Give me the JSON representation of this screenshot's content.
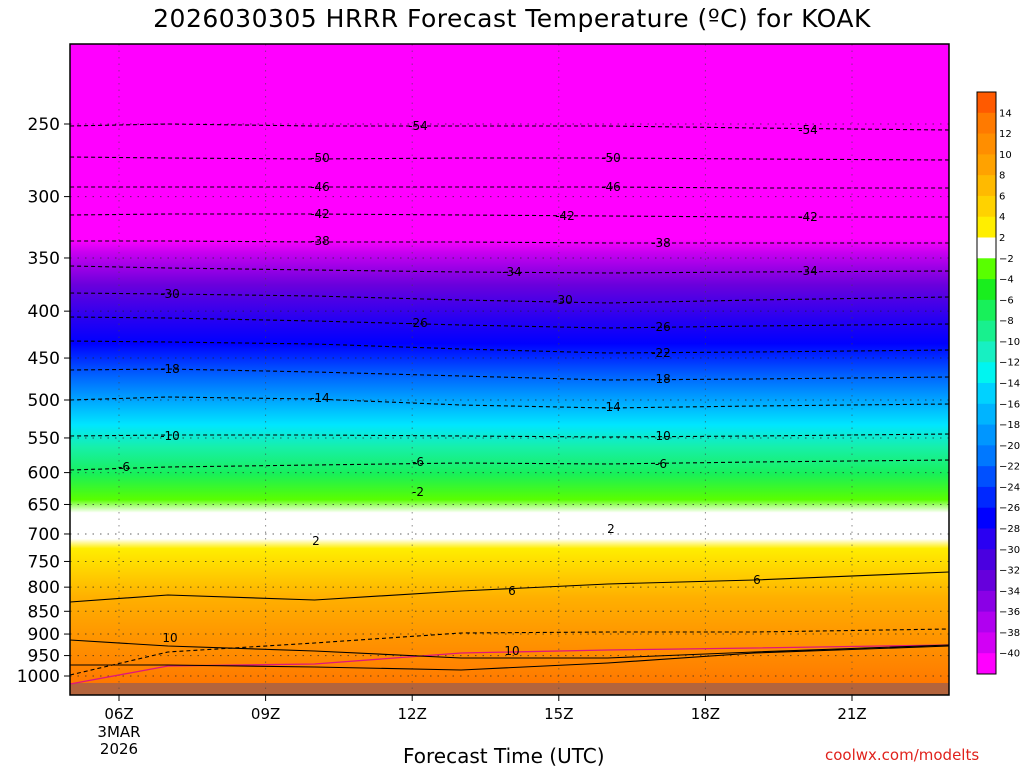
{
  "title": "2026030305 HRRR Forecast Temperature (ºC) for KOAK",
  "xlabel": "Forecast Time (UTC)",
  "credit": "coolwx.com/modelts",
  "chart_data": {
    "type": "heatmap",
    "title": "2026030305 HRRR Forecast Temperature (ºC) for KOAK",
    "xlabel": "Forecast Time (UTC)",
    "ylabel": "",
    "x_ticks": [
      "06Z",
      "09Z",
      "12Z",
      "15Z",
      "18Z",
      "21Z"
    ],
    "x_tick_extra": [
      "3MAR",
      "2026"
    ],
    "y_ticks": [
      250,
      300,
      350,
      400,
      450,
      500,
      550,
      600,
      650,
      700,
      750,
      800,
      850,
      900,
      950,
      1000
    ],
    "y_scale": "log-pressure (inverted)",
    "xlim_hours_utc": [
      5,
      23
    ],
    "ylim_hpa": [
      1050,
      200
    ],
    "grid": true,
    "colorbar_labels": [
      14,
      12,
      10,
      8,
      6,
      4,
      2,
      -2,
      -4,
      -6,
      -8,
      -10,
      -12,
      -14,
      -16,
      -18,
      -20,
      -22,
      -24,
      -26,
      -28,
      -30,
      -32,
      -34,
      -36,
      -38,
      -40
    ],
    "colorbar_colors": [
      "#ff5a00",
      "#ff7a00",
      "#ff8e00",
      "#ffa200",
      "#ffba00",
      "#ffd200",
      "#ffee00",
      "#ffffff",
      "#59ff00",
      "#19ee1e",
      "#18f05a",
      "#18f08e",
      "#17f0c2",
      "#00f5f0",
      "#00d2ff",
      "#00b4ff",
      "#0096ff",
      "#0078ff",
      "#0050ff",
      "#0028ff",
      "#0000ff",
      "#2a00f2",
      "#4a00e0",
      "#6600dc",
      "#8a00e6",
      "#b000f0",
      "#d200f5",
      "#ff00ff"
    ],
    "contours": [
      {
        "level": -54,
        "labels": [
          "-54",
          "-54"
        ]
      },
      {
        "level": -50,
        "labels": [
          "-50",
          "-50"
        ]
      },
      {
        "level": -46,
        "labels": [
          "-46",
          "-46"
        ]
      },
      {
        "level": -42,
        "labels": [
          "-42",
          "-42",
          "-42"
        ]
      },
      {
        "level": -38,
        "labels": [
          "-38",
          "-38"
        ]
      },
      {
        "level": -34,
        "labels": [
          "-34",
          "-34"
        ]
      },
      {
        "level": -30,
        "labels": [
          "-30",
          "-30"
        ]
      },
      {
        "level": -26,
        "labels": [
          "-26",
          "-26"
        ]
      },
      {
        "level": -22,
        "labels": [
          "-22"
        ]
      },
      {
        "level": -18,
        "labels": [
          "-18",
          "-18"
        ]
      },
      {
        "level": -14,
        "labels": [
          "-14",
          "-14"
        ]
      },
      {
        "level": -10,
        "labels": [
          "-10",
          "-10"
        ]
      },
      {
        "level": -6,
        "labels": [
          "-6",
          "-6",
          "-6"
        ]
      },
      {
        "level": -2,
        "labels": [
          "-2"
        ]
      },
      {
        "level": 0,
        "labels": []
      },
      {
        "level": 2,
        "labels": [
          "2",
          "2"
        ]
      },
      {
        "level": 6,
        "labels": [
          "6",
          "6"
        ]
      },
      {
        "level": 10,
        "labels": [
          "10",
          "10"
        ]
      }
    ]
  }
}
